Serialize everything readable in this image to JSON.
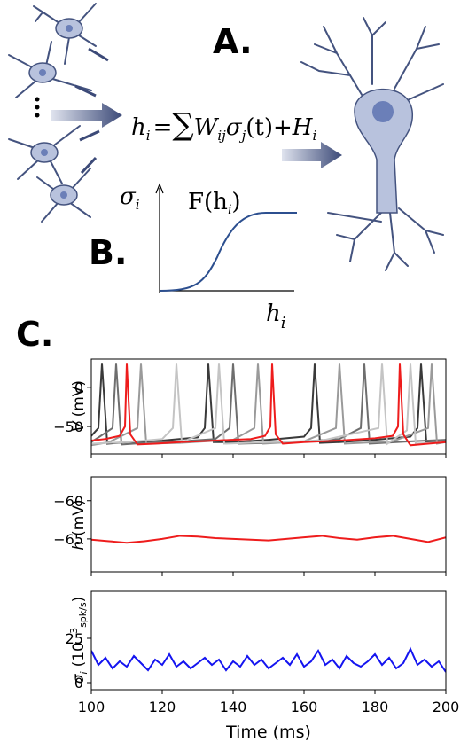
{
  "panel_labels": [
    "A.",
    "B.",
    "C."
  ],
  "equation": [
    "h",
    "i",
    "=",
    "∑",
    "W",
    "ij",
    "σ",
    "j",
    "(t)",
    "+",
    "H",
    "i"
  ],
  "sigmoid": {
    "y_label": [
      "σ",
      "i"
    ],
    "curve_label": [
      "F(h",
      "i",
      ")"
    ],
    "x_label": [
      "h",
      "i"
    ]
  },
  "chart_data": [
    {
      "type": "line",
      "ylabel": [
        "V",
        "(mV)"
      ],
      "xlim": [
        100,
        200
      ],
      "xticks": [
        100,
        120,
        140,
        160,
        180,
        200
      ],
      "ylim": [
        -85,
        36
      ],
      "yticks": [
        {
          "value": -50,
          "label": "−50"
        },
        0
      ],
      "series": [
        {
          "color": "#3a3a3a",
          "x": [
            100,
            102,
            103,
            104.5,
            110,
            120,
            130,
            132,
            133,
            134.5,
            140,
            150,
            160,
            162,
            163,
            164.5,
            170,
            180,
            190,
            192,
            193,
            194.5,
            200
          ],
          "values": [
            -62,
            -52,
            30,
            -72,
            -70,
            -68,
            -64,
            -52,
            30,
            -70,
            -70,
            -67,
            -63,
            -52,
            30,
            -71,
            -70,
            -67,
            -63,
            -52,
            30,
            -70,
            -68
          ]
        },
        {
          "color": "#6e6e6e",
          "x": [
            100,
            106,
            107,
            108.5,
            115,
            125,
            135,
            139,
            140,
            141.5,
            150,
            160,
            170,
            176,
            177,
            178.5,
            190,
            200
          ],
          "values": [
            -70,
            -52,
            30,
            -73,
            -71,
            -69,
            -66,
            -52,
            30,
            -72,
            -71,
            -69,
            -66,
            -52,
            30,
            -72,
            -69,
            -67
          ]
        },
        {
          "color": "#9a9a9a",
          "x": [
            100,
            105,
            113,
            114,
            115.5,
            125,
            140,
            146,
            147,
            148.5,
            160,
            169,
            170,
            171.5,
            185,
            195,
            196,
            197.5,
            200
          ],
          "values": [
            -74,
            -70,
            -52,
            30,
            -72,
            -71,
            -67,
            -52,
            30,
            -72,
            -69,
            -52,
            30,
            -72,
            -69,
            -52,
            30,
            -72,
            -70
          ]
        },
        {
          "color": "#c4c4c4",
          "x": [
            100,
            110,
            120,
            123,
            124,
            125.5,
            135,
            136,
            137.5,
            150,
            165,
            181,
            182,
            183.5,
            189,
            190,
            191.5,
            200
          ],
          "values": [
            -72,
            -70,
            -66,
            -52,
            30,
            -70,
            -52,
            30,
            -72,
            -70,
            -68,
            -52,
            30,
            -72,
            -55,
            30,
            -72,
            -70
          ]
        },
        {
          "color": "#ee1c1c",
          "x": [
            100,
            104,
            108,
            109.5,
            110,
            111,
            113,
            118,
            125,
            135,
            145,
            149,
            150.5,
            151,
            152,
            154,
            160,
            170,
            180,
            185,
            186.5,
            187,
            188,
            190,
            195,
            200
          ],
          "values": [
            -68,
            -66,
            -62,
            -50,
            30,
            -60,
            -73,
            -72,
            -70,
            -68,
            -66,
            -62,
            -50,
            30,
            -60,
            -72,
            -70,
            -68,
            -65,
            -62,
            -50,
            30,
            -60,
            -74,
            -72,
            -70
          ]
        }
      ]
    },
    {
      "type": "line",
      "ylabel": [
        "h",
        "(mV)"
      ],
      "xlim": [
        100,
        200
      ],
      "xticks": [
        100,
        120,
        140,
        160,
        180,
        200
      ],
      "ylim": [
        -69.3,
        -56.9
      ],
      "yticks": [
        {
          "value": -65,
          "label": "−65"
        },
        {
          "value": -60,
          "label": "−60"
        }
      ],
      "series": [
        {
          "color": "#ee1c1c",
          "x": [
            100,
            105,
            110,
            115,
            120,
            125,
            130,
            135,
            140,
            145,
            150,
            155,
            160,
            165,
            170,
            175,
            180,
            185,
            190,
            195,
            200
          ],
          "values": [
            -65.1,
            -65.3,
            -65.5,
            -65.3,
            -65.0,
            -64.6,
            -64.7,
            -64.9,
            -65.0,
            -65.1,
            -65.2,
            -65.0,
            -64.8,
            -64.6,
            -64.9,
            -65.1,
            -64.8,
            -64.6,
            -65.0,
            -65.4,
            -64.8
          ]
        }
      ]
    },
    {
      "type": "line",
      "ylabel": [
        "σ",
        "i",
        "(10",
        "−3",
        "spk/s",
        ")"
      ],
      "xlabel": "Time (ms)",
      "xlim": [
        100,
        200
      ],
      "xticks": [
        100,
        120,
        140,
        160,
        180,
        200
      ],
      "ylim": [
        -4,
        51.5
      ],
      "yticks": [
        0,
        25
      ],
      "series": [
        {
          "color": "#1414f0",
          "x": [
            100,
            102,
            104,
            106,
            108,
            110,
            112,
            114,
            116,
            118,
            120,
            122,
            124,
            126,
            128,
            130,
            132,
            134,
            136,
            138,
            140,
            142,
            144,
            146,
            148,
            150,
            152,
            154,
            156,
            158,
            160,
            162,
            164,
            166,
            168,
            170,
            172,
            174,
            176,
            178,
            180,
            182,
            184,
            186,
            188,
            190,
            192,
            194,
            196,
            198,
            200
          ],
          "values": [
            18,
            10,
            14,
            8,
            12,
            9,
            15,
            11,
            7,
            13,
            10,
            16,
            9,
            12,
            8,
            11,
            14,
            10,
            13,
            7,
            12,
            9,
            15,
            10,
            13,
            8,
            11,
            14,
            10,
            16,
            9,
            12,
            18,
            10,
            13,
            8,
            15,
            11,
            9,
            12,
            16,
            10,
            14,
            8,
            11,
            19,
            10,
            13,
            9,
            12,
            6
          ]
        }
      ]
    }
  ]
}
